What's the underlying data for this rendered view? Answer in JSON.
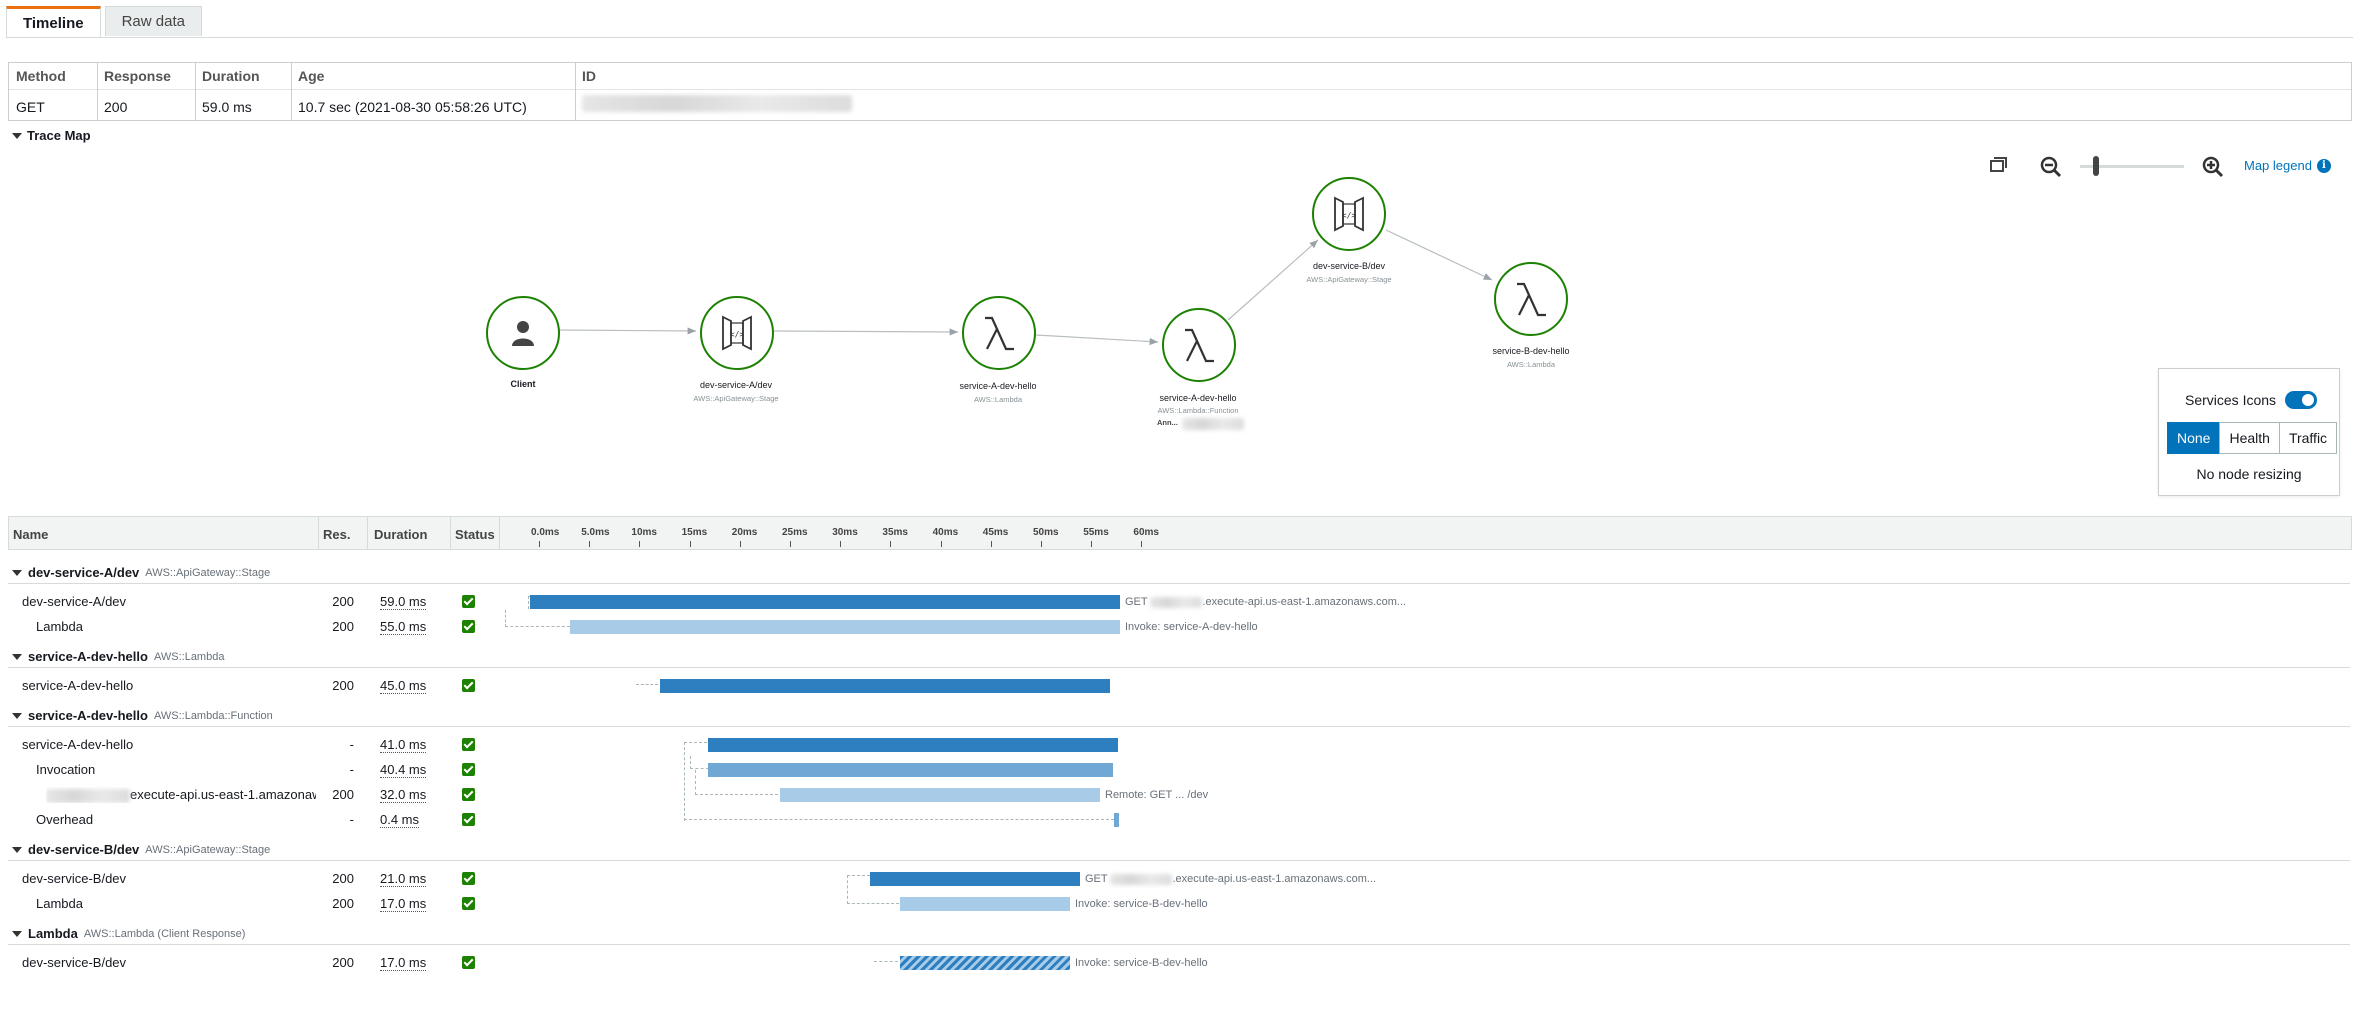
{
  "tabs": [
    "Timeline",
    "Raw data"
  ],
  "summary": {
    "headers": [
      "Method",
      "Response",
      "Duration",
      "Age",
      "ID"
    ],
    "method": "GET",
    "response": "200",
    "duration": "59.0 ms",
    "age": "10.7 sec (2021-08-30 05:58:26 UTC)"
  },
  "trace_map": {
    "section_title": "Trace Map",
    "legend_link": "Map legend",
    "zoom_level": 0.13,
    "nodes": [
      {
        "name": "Client",
        "type": "",
        "icon": "user-icon"
      },
      {
        "name": "dev-service-A/dev",
        "type": "AWS::ApiGateway::Stage",
        "icon": "api-gateway-icon"
      },
      {
        "name": "service-A-dev-hello",
        "type": "AWS::Lambda",
        "icon": "lambda-icon"
      },
      {
        "name": "service-A-dev-hello",
        "type": "AWS::Lambda::Function",
        "icon": "lambda-icon",
        "extra": "Ann..."
      },
      {
        "name": "dev-service-B/dev",
        "type": "AWS::ApiGateway::Stage",
        "icon": "api-gateway-icon"
      },
      {
        "name": "service-B-dev-hello",
        "type": "AWS::Lambda",
        "icon": "lambda-icon"
      }
    ],
    "services_panel": {
      "title": "Services Icons",
      "toggle_on": true,
      "options": [
        "None",
        "Health",
        "Traffic"
      ],
      "selected": "None",
      "note": "No node resizing"
    }
  },
  "timeline": {
    "columns": [
      "Name",
      "Res.",
      "Duration",
      "Status"
    ],
    "ticks": [
      "0.0ms",
      "5.0ms",
      "10ms",
      "15ms",
      "20ms",
      "25ms",
      "30ms",
      "35ms",
      "40ms",
      "45ms",
      "50ms",
      "55ms",
      "60ms"
    ],
    "groups": [
      {
        "name": "dev-service-A/dev",
        "type": "AWS::ApiGateway::Stage",
        "rows": [
          {
            "name": "dev-service-A/dev",
            "res": "200",
            "duration": "59.0 ms",
            "label": ".execute-api.us-east-1.amazonaws.com...",
            "label_prefix": "GET"
          },
          {
            "name": "Lambda",
            "res": "200",
            "duration": "55.0 ms",
            "label": "Invoke: service-A-dev-hello"
          }
        ]
      },
      {
        "name": "service-A-dev-hello",
        "type": "AWS::Lambda",
        "rows": [
          {
            "name": "service-A-dev-hello",
            "res": "200",
            "duration": "45.0 ms"
          }
        ]
      },
      {
        "name": "service-A-dev-hello",
        "type": "AWS::Lambda::Function",
        "rows": [
          {
            "name": "service-A-dev-hello",
            "res": "-",
            "duration": "41.0 ms"
          },
          {
            "name": "Invocation",
            "res": "-",
            "duration": "40.4 ms"
          },
          {
            "name": "execute-api.us-east-1.amazonaw",
            "res": "200",
            "duration": "32.0 ms",
            "label": "Remote: GET ... /dev"
          },
          {
            "name": "Overhead",
            "res": "-",
            "duration": "0.4 ms"
          }
        ]
      },
      {
        "name": "dev-service-B/dev",
        "type": "AWS::ApiGateway::Stage",
        "rows": [
          {
            "name": "dev-service-B/dev",
            "res": "200",
            "duration": "21.0 ms",
            "label": ".execute-api.us-east-1.amazonaws.com...",
            "label_prefix": "GET"
          },
          {
            "name": "Lambda",
            "res": "200",
            "duration": "17.0 ms",
            "label": "Invoke: service-B-dev-hello"
          }
        ]
      },
      {
        "name": "Lambda",
        "type": "AWS::Lambda (Client Response)",
        "rows": [
          {
            "name": "dev-service-B/dev",
            "res": "200",
            "duration": "17.0 ms",
            "label": "Invoke: service-B-dev-hello"
          }
        ]
      }
    ]
  }
}
